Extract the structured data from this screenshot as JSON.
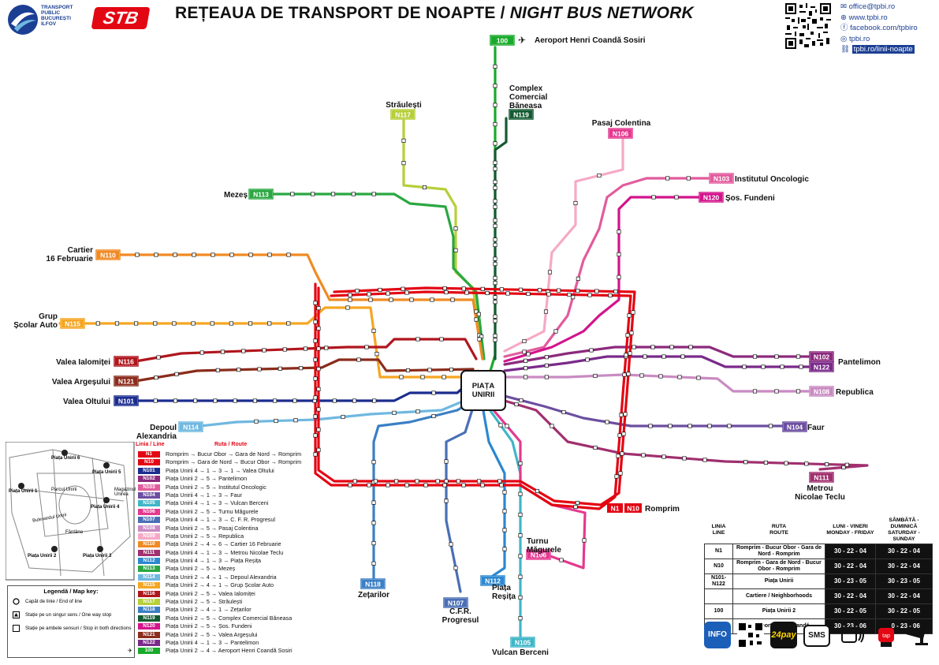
{
  "header": {
    "title_ro": "REȚEAUA DE TRANSPORT DE NOAPTE / ",
    "title_en": "NIGHT BUS NETWORK",
    "operator_logo_text": "TRANSPORT\nPUBLIC\nBUCUREȘTI\nILFOV",
    "stb_logo": "STB"
  },
  "contacts": {
    "email": "office@tpbi.ro",
    "web": "www.tpbi.ro",
    "facebook": "facebook.com/tpbiro",
    "instagram": "tpbi.ro",
    "lines_url": "tpbi.ro/linii-noapte"
  },
  "line_colors": {
    "N1": "#e30613",
    "N10": "#e30613",
    "N101": "#1c2d8f",
    "N102": "#8c2a7d",
    "N103": "#e25b9d",
    "N104": "#6c4fa0",
    "N105": "#40b6c7",
    "N106": "#e4398f",
    "N107": "#4a6fb5",
    "N108": "#c98bc2",
    "N109": "#f5a9c6",
    "N110": "#f08a24",
    "N111": "#a0306e",
    "N112": "#2d88d0",
    "N113": "#2aa742",
    "N114": "#6fb8e0",
    "N115": "#f5a623",
    "N116": "#b0161e",
    "N117": "#b6cf3a",
    "N118": "#3b7fc4",
    "N119": "#145a32",
    "N120": "#d3148c",
    "N121": "#8b2c1c",
    "N122": "#7a2a8a",
    "100": "#1aaa2b"
  },
  "terminals": {
    "aeroport": "Aeroport Henri Coandă Sosiri",
    "straulesti": "Străulești",
    "complex": "Complex\nComercial\nBăneasa",
    "pasaj": "Pasaj Colentina",
    "institutul": "Institutul Oncologic",
    "fundeni": "Șos. Fundeni",
    "mezes": "Mezeș",
    "cartier16": "Cartier\n16 Februarie",
    "grup": "Grup\nȘcolar Auto",
    "ialomitei": "Valea Ialomiței",
    "arges": "Valea Argeșului",
    "oltului": "Valea Oltului",
    "depoul": "Depoul\nAlexandria",
    "pantelimon": "Pantelimon",
    "republica": "Republica",
    "faur": "Faur",
    "teclu": "Metrou\nNicolae Teclu",
    "rompim": "Romprim",
    "turnu": "Turnu\nMăgurele",
    "zetarilor": "Zețarilor",
    "cfr": "C.F.R.\nProgresul",
    "resita": "Piața\nReșița",
    "berceni": "Vulcan Berceni",
    "piata_unirii": "PIAȚA\nUNIRII"
  },
  "legend": {
    "header_line": "Linia / Line",
    "header_route": "Ruta / Route",
    "lines": [
      {
        "id": "N1",
        "route": "Romprim → Bucur Obor → Gara de Nord → Romprim"
      },
      {
        "id": "N10",
        "route": "Romprim → Gara de Nord → Bucur Obor → Romprim"
      },
      {
        "id": "N101",
        "route": "Piața Unirii 4 → 1 → 3 → 1 → Valea Oltului"
      },
      {
        "id": "N102",
        "route": "Piața Unirii 2 → 5 → Pantelimon"
      },
      {
        "id": "N103",
        "route": "Piața Unirii 2 → 5 → Institutul Oncologic"
      },
      {
        "id": "N104",
        "route": "Piața Unirii 4 → 1 → 3 → Faur"
      },
      {
        "id": "N105",
        "route": "Piața Unirii 4 → 1 → 3 → Vulcan Berceni"
      },
      {
        "id": "N106",
        "route": "Piața Unirii 2 → 5 → Turnu Măgurele"
      },
      {
        "id": "N107",
        "route": "Piața Unirii 4 → 1 → 3 → C. F. R. Progresul"
      },
      {
        "id": "N108",
        "route": "Piața Unirii 2 → 5 → Pasaj Colentina"
      },
      {
        "id": "N109",
        "route": "Piața Unirii 2 → 5 → Republica"
      },
      {
        "id": "N110",
        "route": "Piața Unirii 2 → 4 → 6 → Cartier 16 Februarie"
      },
      {
        "id": "N111",
        "route": "Piața Unirii 4 → 1 → 3 → Metrou Nicolae Teclu"
      },
      {
        "id": "N112",
        "route": "Piața Unirii 4 → 1 → 3 → Piața Reșița"
      },
      {
        "id": "N113",
        "route": "Piața Unirii 2 → 5 → Mezeș"
      },
      {
        "id": "N114",
        "route": "Piața Unirii 2 → 4 → 1 → Depoul Alexandria"
      },
      {
        "id": "N115",
        "route": "Piața Unirii 2 → 4 → 1 → Grup Școlar Auto"
      },
      {
        "id": "N116",
        "route": "Piața Unirii 2 → 5 → Valea Ialomiței"
      },
      {
        "id": "N117",
        "route": "Piața Unirii 2 → 5 → Străulești"
      },
      {
        "id": "N118",
        "route": "Piața Unirii 2 → 4 → 1 → Zețarilor"
      },
      {
        "id": "N119",
        "route": "Piața Unirii 2 → 5 → Complex Comercial Băneasa"
      },
      {
        "id": "N120",
        "route": "Piața Unirii 2 → 5 → Șos. Fundeni"
      },
      {
        "id": "N121",
        "route": "Piața Unirii 2 → 5 → Valea Argeșului"
      },
      {
        "id": "N122",
        "route": "Piața Unirii 4 → 1 → 3 → Pantelimon"
      },
      {
        "id": "100",
        "route": "Piața Unirii 2 → 4 → Aeroport Henri Coandă Sosiri"
      }
    ]
  },
  "inset": {
    "stops": [
      "Piața Unirii 1",
      "Piața Unirii 2",
      "Piața Unirii 3",
      "Piața Unirii 4",
      "Piața Unirii 5",
      "Piața Unirii 6"
    ],
    "labels": [
      "Parcul Unirii",
      "Bulevardul Unirii",
      "Fântâna",
      "Magazinul Unirea"
    ]
  },
  "map_key": {
    "title": "Legendă / Map key:",
    "items": [
      "Capăt de linie / End of line",
      "Stație pe un singur sens / One way stop",
      "Stație pe ambele sensuri / Stop in both directions"
    ]
  },
  "schedule": {
    "headers": [
      "LINIA\nLINE",
      "RUTA\nROUTE",
      "LUNI - VINERI\nMONDAY - FRIDAY",
      "SÂMBĂTĂ - DUMINICĂ\nSATURDAY - SUNDAY"
    ],
    "rows": [
      {
        "line": "N1",
        "route": "Romprim - Bucur Obor - Gara de Nord - Romprim",
        "weekday": "30 - 22 - 04",
        "weekend": "30 - 22 - 04"
      },
      {
        "line": "N10",
        "route": "Romprim - Gara de Nord - Bucur Obor - Romprim",
        "weekday": "30 - 22 - 04",
        "weekend": "30 - 22 - 04"
      },
      {
        "line": "N101-N122",
        "route": "Piața Unirii",
        "weekday": "30 - 23 - 05",
        "weekend": "30 - 23 - 05"
      },
      {
        "line": "",
        "route": "Cartiere / Neighborhoods",
        "weekday": "30 - 22 - 04",
        "weekend": "30 - 22 - 04"
      },
      {
        "line": "100",
        "route": "Piața Unirii 2",
        "weekday": "30 - 22 - 05",
        "weekend": "30 - 22 - 05"
      },
      {
        "line": "",
        "route": "Aeroport Henri Coandă",
        "weekday": "30 - 23 - 06",
        "weekend": "30 - 23 - 06"
      }
    ]
  },
  "bottom_icons": {
    "info": "INFO",
    "pay": "24pay",
    "sms": "SMS"
  }
}
